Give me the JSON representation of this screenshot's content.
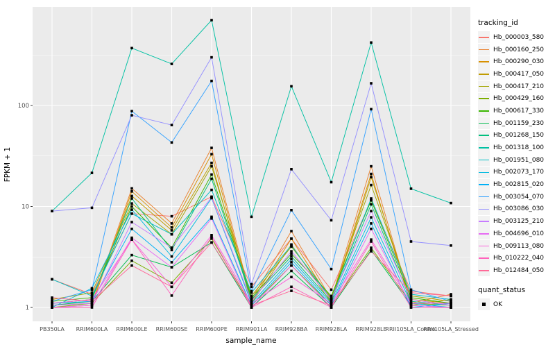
{
  "chart_data": {
    "type": "line",
    "title": "",
    "xlabel": "sample_name",
    "ylabel": "FPKM + 1",
    "y_scale": "log10",
    "y_ticks": [
      "1",
      "10",
      "100"
    ],
    "y_tick_values": [
      1,
      10,
      100
    ],
    "y_minor_values": [
      3.162,
      31.62,
      316.2
    ],
    "ylim": [
      0.73,
      930
    ],
    "grid": true,
    "legend_position": "right",
    "panel_bg": "#EBEBEB",
    "grid_color": "#FFFFFF",
    "marker_color": "#000000",
    "tick_label_color": "#4D4D4D",
    "categories": [
      "PB350LA",
      "RRIM600LA",
      "RRIM600LE",
      "RRIM600SE",
      "RRIM600PE",
      "RRIM901LA",
      "RRIM928BA",
      "RRIM928LA",
      "RRIM928LE",
      "RRII105LA_Control",
      "RRII105LA_Stressed"
    ],
    "legend_tracking": {
      "title": "tracking_id"
    },
    "legend_quant": {
      "title": "quant_status",
      "items": [
        "OK"
      ]
    },
    "series": [
      {
        "tracking_id": "Hb_000003_580",
        "color": "#F8766D",
        "values": [
          1.9,
          1.35,
          8.5,
          8.0,
          12.5,
          1.6,
          4.8,
          1.5,
          11.5,
          1.45,
          1.3
        ]
      },
      {
        "tracking_id": "Hb_000160_250",
        "color": "#EA8331",
        "values": [
          1.05,
          1.1,
          15.1,
          6.8,
          38,
          1.2,
          5.7,
          1.2,
          25,
          1.1,
          1.35
        ]
      },
      {
        "tracking_id": "Hb_000290_030",
        "color": "#D89000",
        "values": [
          1.0,
          1.05,
          14.1,
          6.2,
          33,
          1.15,
          4.8,
          1.15,
          21,
          1.05,
          1.2
        ]
      },
      {
        "tracking_id": "Hb_000417_050",
        "color": "#C09B00",
        "values": [
          1.1,
          1.2,
          12.7,
          5.8,
          27,
          1.1,
          4.2,
          1.1,
          19.5,
          1.2,
          1.1
        ]
      },
      {
        "tracking_id": "Hb_000417_210",
        "color": "#A3A500",
        "values": [
          1.2,
          1.4,
          10.7,
          5.3,
          25,
          1.3,
          4.0,
          1.25,
          16.3,
          1.3,
          1.15
        ]
      },
      {
        "tracking_id": "Hb_000429_160",
        "color": "#7CAE00",
        "values": [
          1.0,
          1.1,
          2.9,
          1.76,
          4.8,
          1.05,
          2.6,
          1.05,
          3.9,
          1.1,
          1.05
        ]
      },
      {
        "tracking_id": "Hb_000617_330",
        "color": "#39B600",
        "values": [
          1.15,
          1.25,
          10.0,
          3.9,
          20.7,
          1.25,
          3.4,
          1.3,
          11.5,
          1.25,
          1.1
        ]
      },
      {
        "tracking_id": "Hb_001159_230",
        "color": "#00BB4E",
        "values": [
          1.05,
          1.15,
          3.3,
          2.5,
          4.4,
          1.0,
          2.3,
          1.0,
          3.7,
          1.05,
          1.0
        ]
      },
      {
        "tracking_id": "Hb_001268_150",
        "color": "#00BF7D",
        "values": [
          1.1,
          1.2,
          12.0,
          3.7,
          18.8,
          1.2,
          3.2,
          1.15,
          10.5,
          1.15,
          1.05
        ]
      },
      {
        "tracking_id": "Hb_001318_100",
        "color": "#00C1A3",
        "values": [
          9.0,
          21.5,
          370,
          258,
          700,
          7.9,
          155,
          17.4,
          420,
          15,
          10.8
        ]
      },
      {
        "tracking_id": "Hb_001951_080",
        "color": "#00BFC4",
        "values": [
          1.9,
          1.3,
          8.5,
          5.3,
          14.6,
          1.4,
          4.1,
          1.2,
          12.0,
          1.35,
          1.2
        ]
      },
      {
        "tracking_id": "Hb_002073_170",
        "color": "#00BAE0",
        "values": [
          1.0,
          1.55,
          9.3,
          3.2,
          12.1,
          1.1,
          3.0,
          1.1,
          7.8,
          1.1,
          1.0
        ]
      },
      {
        "tracking_id": "Hb_002815_020",
        "color": "#00B0F6",
        "values": [
          1.1,
          1.15,
          6.0,
          2.8,
          7.9,
          1.05,
          2.8,
          1.05,
          6.8,
          1.0,
          1.1
        ]
      },
      {
        "tracking_id": "Hb_003054_070",
        "color": "#35A2FF",
        "values": [
          1.15,
          1.5,
          88,
          43,
          175,
          1.45,
          9.2,
          2.4,
          92,
          1.5,
          1.15
        ]
      },
      {
        "tracking_id": "Hb_003086_030",
        "color": "#9590FF",
        "values": [
          9.0,
          9.7,
          80,
          64,
          300,
          1.7,
          23.4,
          7.3,
          166,
          4.5,
          4.1
        ]
      },
      {
        "tracking_id": "Hb_003125_210",
        "color": "#C77CFF",
        "values": [
          1.05,
          1.1,
          7.0,
          3.9,
          12.3,
          1.15,
          3.6,
          1.2,
          9.0,
          1.2,
          1.05
        ]
      },
      {
        "tracking_id": "Hb_004696_010",
        "color": "#E76BF3",
        "values": [
          1.0,
          1.05,
          4.9,
          2.5,
          7.6,
          1.0,
          2.6,
          1.0,
          6.0,
          1.05,
          1.0
        ]
      },
      {
        "tracking_id": "Hb_009113_080",
        "color": "#FA62DB",
        "values": [
          1.1,
          1.2,
          4.7,
          1.6,
          5.2,
          1.1,
          2.0,
          1.1,
          4.7,
          1.1,
          1.1
        ]
      },
      {
        "tracking_id": "Hb_010222_040",
        "color": "#FF62BC",
        "values": [
          1.0,
          1.0,
          4.7,
          1.31,
          5.0,
          1.0,
          1.6,
          1.0,
          4.5,
          1.0,
          1.0
        ]
      },
      {
        "tracking_id": "Hb_012484_050",
        "color": "#FF6A98",
        "values": [
          1.25,
          1.15,
          2.6,
          1.6,
          4.4,
          1.05,
          1.46,
          1.05,
          3.6,
          1.4,
          1.3
        ]
      }
    ]
  }
}
